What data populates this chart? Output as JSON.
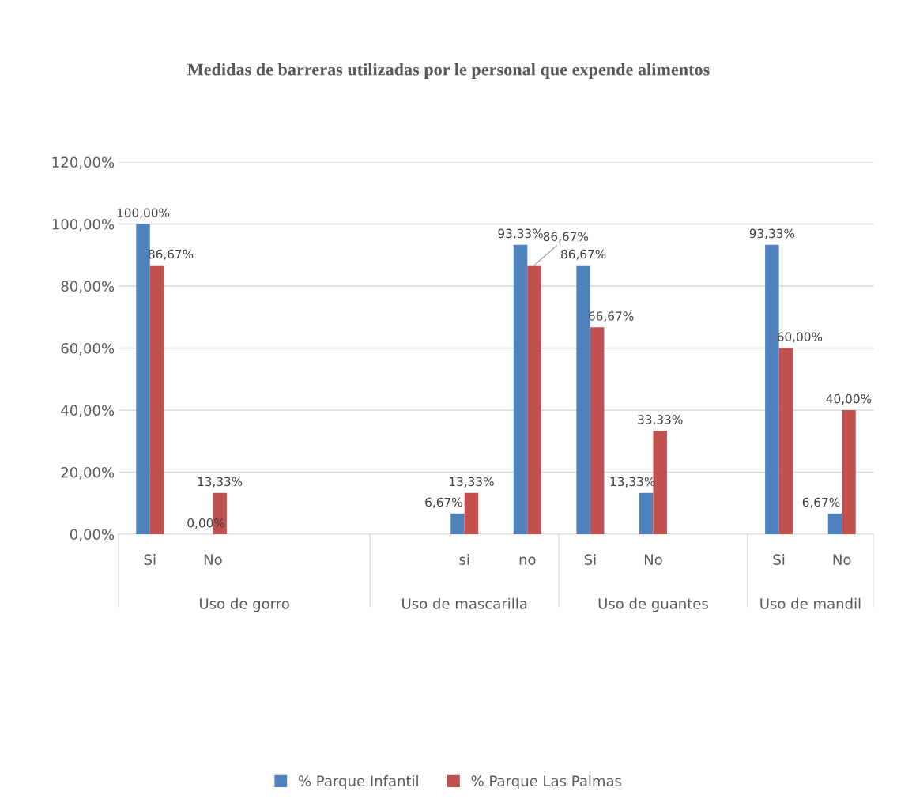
{
  "chart_data": {
    "type": "bar",
    "title": "Medidas de barreras utilizadas por le personal que expende alimentos",
    "categories": [
      "Si",
      "No",
      null,
      null,
      null,
      "si",
      "no",
      "Si",
      "No",
      null,
      "Si",
      "No"
    ],
    "annotations": [
      "Uso de gorro",
      "Uso de mascarilla",
      "Uso de guantes",
      "Uso de mandil"
    ],
    "series": [
      {
        "name": "% Parque Infantil",
        "color": "#4f81bd",
        "values": [
          100,
          0,
          null,
          null,
          null,
          6.67,
          93.33,
          86.67,
          13.33,
          null,
          93.33,
          6.67
        ],
        "value_labels": [
          "100,00%",
          "0,00%",
          null,
          null,
          null,
          "6,67%",
          "93,33%",
          "86,67%",
          "13,33%",
          null,
          "93,33%",
          "6,67%"
        ]
      },
      {
        "name": "% Parque Las Palmas",
        "color": "#c0504d",
        "values": [
          86.67,
          13.33,
          null,
          null,
          null,
          13.33,
          86.67,
          66.67,
          33.33,
          null,
          60,
          40
        ],
        "value_labels": [
          "86,67%",
          "13,33%",
          null,
          null,
          null,
          "13,33%",
          "86,67%",
          "66,67%",
          "33,33%",
          null,
          "60,00%",
          "40,00%"
        ]
      }
    ],
    "ylim": [
      0,
      120
    ],
    "yticks": [
      {
        "value": 0,
        "label": "0,00%"
      },
      {
        "value": 20,
        "label": "20,00%"
      },
      {
        "value": 40,
        "label": "40,00%"
      },
      {
        "value": 60,
        "label": "60,00%"
      },
      {
        "value": 80,
        "label": "80,00%"
      },
      {
        "value": 100,
        "label": "100,00%"
      },
      {
        "value": 120,
        "label": "120,00%"
      }
    ],
    "grid": "y",
    "legend": "bottom"
  }
}
